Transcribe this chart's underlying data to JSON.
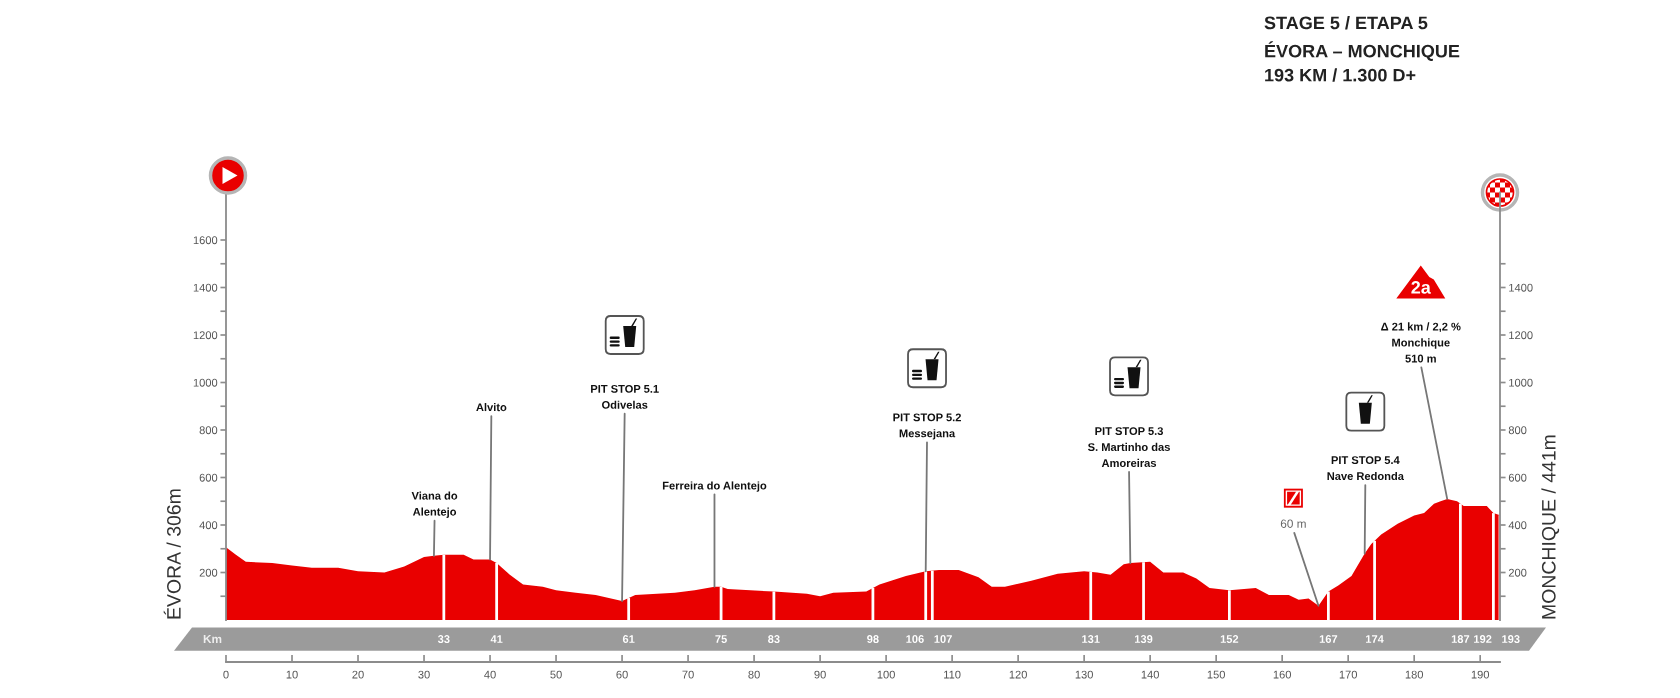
{
  "chart_data": {
    "type": "area",
    "title": "STAGE 5 / ETAPA 5\nÉVORA – MONCHIQUE\n193 KM / 1.300 D+",
    "ylabel": "ÉVORA / 306m",
    "y2label": "MONCHIQUE / 441m",
    "x": [
      0,
      1.5,
      3,
      7,
      10,
      13,
      17,
      20,
      24,
      27,
      30,
      31.5,
      33,
      36,
      37.5,
      40,
      41,
      43,
      45,
      48,
      50,
      53,
      56,
      60,
      62,
      68,
      71,
      74,
      75,
      76,
      83,
      88,
      90,
      92,
      97,
      99,
      103,
      106,
      108,
      111,
      114,
      116,
      118,
      122,
      126,
      130,
      132,
      134,
      136,
      137,
      140,
      142,
      145,
      147,
      149,
      152,
      156,
      158,
      161,
      162.5,
      164,
      165.5,
      167,
      168.5,
      170.5,
      172.5,
      173.5,
      175,
      177.5,
      180,
      181.5,
      183,
      184,
      185,
      186.5,
      187.5,
      191,
      192,
      193
    ],
    "series": [
      {
        "color": "#e90000",
        "values": [
          306,
          275,
          245,
          240,
          230,
          220,
          220,
          205,
          200,
          225,
          265,
          270,
          275,
          275,
          255,
          255,
          240,
          190,
          150,
          140,
          125,
          115,
          105,
          80,
          105,
          115,
          125,
          140,
          140,
          130,
          120,
          110,
          100,
          115,
          120,
          150,
          185,
          205,
          210,
          210,
          180,
          140,
          140,
          165,
          195,
          205,
          200,
          190,
          235,
          240,
          245,
          200,
          200,
          175,
          135,
          125,
          135,
          105,
          105,
          85,
          90,
          60,
          120,
          145,
          185,
          280,
          320,
          360,
          405,
          440,
          450,
          490,
          500,
          510,
          500,
          480,
          480,
          450,
          441
        ]
      }
    ],
    "xlim": [
      0,
      193
    ],
    "xticks": [
      0,
      10,
      20,
      30,
      40,
      50,
      60,
      70,
      80,
      90,
      100,
      110,
      120,
      130,
      140,
      150,
      160,
      170,
      180,
      190
    ],
    "ylim": [
      0,
      1800
    ],
    "yticks": [
      {
        "value": 100,
        "label": null
      },
      200,
      {
        "value": 300,
        "label": null
      },
      400,
      {
        "value": 500,
        "label": null
      },
      600,
      {
        "value": 700,
        "label": null
      },
      800,
      {
        "value": 900,
        "label": null
      },
      1000,
      {
        "value": 1100,
        "label": null
      },
      1200,
      {
        "value": 1300,
        "label": null
      },
      1400,
      {
        "value": 1500,
        "label": null
      },
      1600
    ],
    "y2lim": [
      0,
      1800
    ],
    "y2ticks": [
      {
        "value": 100,
        "label": null
      },
      200,
      {
        "value": 300,
        "label": null
      },
      400,
      {
        "value": 500,
        "label": null
      },
      600,
      {
        "value": 700,
        "label": null
      },
      800,
      {
        "value": 900,
        "label": null
      },
      1000,
      {
        "value": 1100,
        "label": null
      },
      1200,
      {
        "value": 1300,
        "label": null
      },
      1400,
      {
        "value": 1500,
        "label": null
      }
    ],
    "ref_lines": [
      {
        "axis": "x",
        "value": 33,
        "label": "33",
        "color": "#ffffff"
      },
      {
        "axis": "x",
        "value": 41,
        "label": "41",
        "color": "#ffffff"
      },
      {
        "axis": "x",
        "value": 61,
        "label": "61",
        "color": "#ffffff"
      },
      {
        "axis": "x",
        "value": 75,
        "label": "75",
        "color": "#ffffff"
      },
      {
        "axis": "x",
        "value": 83,
        "label": "83",
        "color": "#ffffff"
      },
      {
        "axis": "x",
        "value": 98,
        "label": "98",
        "color": "#ffffff"
      },
      {
        "axis": "x",
        "value": 106,
        "label": "106",
        "color": "#ffffff"
      },
      {
        "axis": "x",
        "value": 107,
        "label": "107",
        "color": "#ffffff"
      },
      {
        "axis": "x",
        "value": 131,
        "label": "131",
        "color": "#ffffff"
      },
      {
        "axis": "x",
        "value": 139,
        "label": "139",
        "color": "#ffffff"
      },
      {
        "axis": "x",
        "value": 152,
        "label": "152",
        "color": "#ffffff"
      },
      {
        "axis": "x",
        "value": 167,
        "label": "167",
        "color": "#ffffff"
      },
      {
        "axis": "x",
        "value": 174,
        "label": "174",
        "color": "#ffffff"
      },
      {
        "axis": "x",
        "value": 187,
        "label": "187",
        "color": "#ffffff"
      },
      {
        "axis": "x",
        "value": 192,
        "label": "192",
        "color": "#ffffff"
      },
      {
        "axis": "x",
        "value": 193,
        "label": "193",
        "color": "#ffffff"
      }
    ],
    "annotations": [
      {
        "text": "Viana do\nAlentejo",
        "x": 31.5,
        "y": 270
      },
      {
        "text": "Alvito",
        "x": 40,
        "y": 255
      },
      {
        "text": "PIT STOP 5.1\nOdivelas",
        "x": 60,
        "y": 80
      },
      {
        "text": "Ferreira do Alentejo",
        "x": 74,
        "y": 140
      },
      {
        "text": "PIT STOP 5.2\nMessejana",
        "x": 106,
        "y": 205
      },
      {
        "text": "PIT STOP 5.3\nS. Martinho das\nAmoreiras",
        "x": 137,
        "y": 240
      },
      {
        "text": "60 m",
        "x": 165.5,
        "y": 60
      },
      {
        "text": "PIT STOP 5.4\nNave Redonda",
        "x": 172.5,
        "y": 280
      },
      {
        "text": "Δ 21 km / 2,2 %\nMonchique\n510 m",
        "x": 185,
        "y": 510
      },
      "2a",
      "Km"
    ]
  }
}
